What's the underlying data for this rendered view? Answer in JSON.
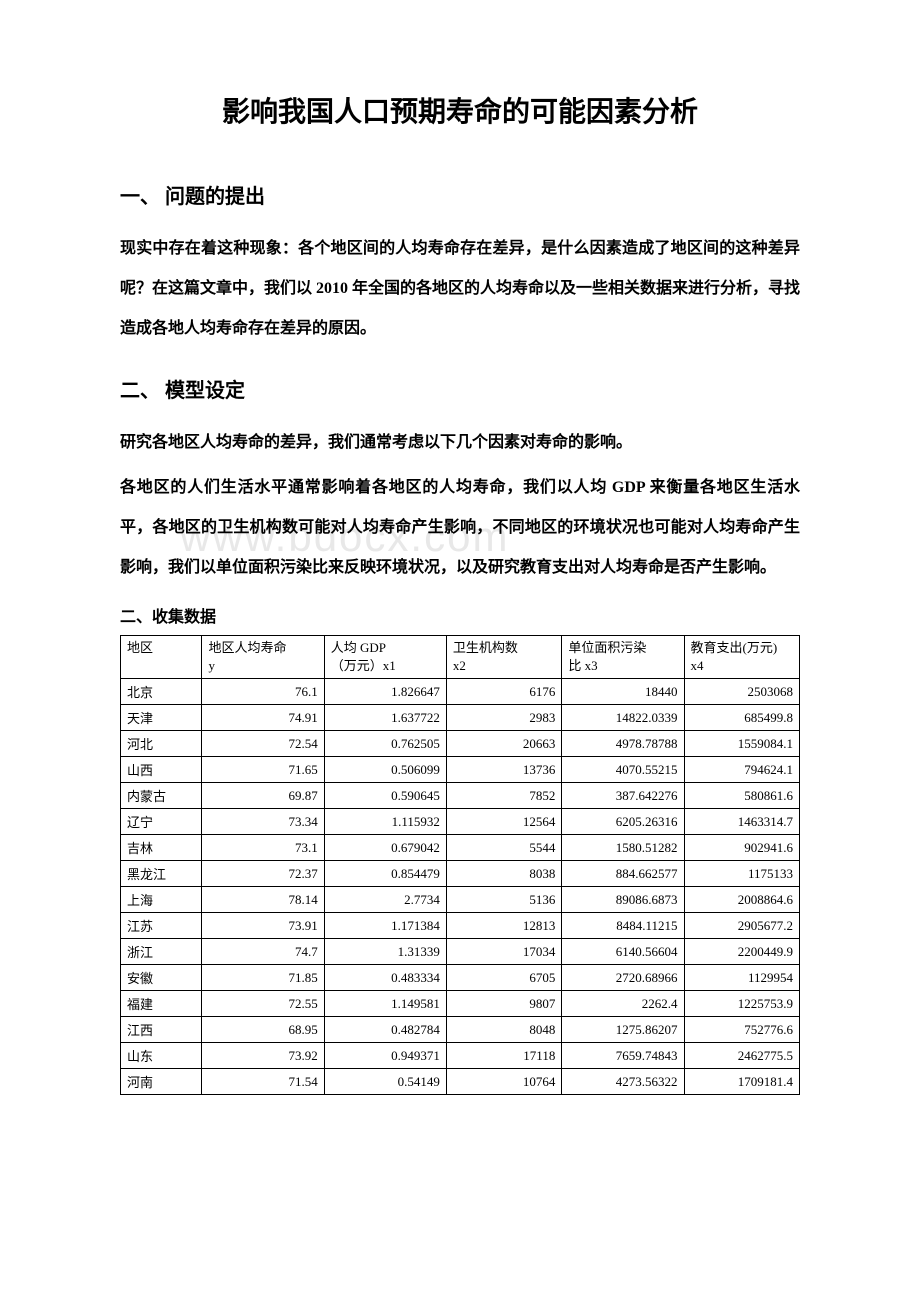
{
  "title": "影响我国人口预期寿命的可能因素分析",
  "sections": {
    "s1": {
      "heading": "一、 问题的提出",
      "paragraphs": [
        "现实中存在着这种现象：各个地区间的人均寿命存在差异，是什么因素造成了地区间的这种差异呢？在这篇文章中，我们以 2010 年全国的各地区的人均寿命以及一些相关数据来进行分析，寻找造成各地人均寿命存在差异的原因。"
      ]
    },
    "s2": {
      "heading": "二、  模型设定",
      "paragraphs": [
        "研究各地区人均寿命的差异，我们通常考虑以下几个因素对寿命的影响。",
        "各地区的人们生活水平通常影响着各地区的人均寿命，我们以人均 GDP 来衡量各地区生活水平，各地区的卫生机构数可能对人均寿命产生影响，不同地区的环境状况也可能对人均寿命产生影响，我们以单位面积污染比来反映环境状况，以及研究教育支出对人均寿命是否产生影响。"
      ]
    },
    "s3": {
      "heading": "二、收集数据"
    }
  },
  "watermark": "www.bdocx.com",
  "table": {
    "columns": [
      {
        "label1": "",
        "label2": "地区",
        "class": "col-region header-cell"
      },
      {
        "label1": "地区人均寿命",
        "label2": "y",
        "class": "header-cell"
      },
      {
        "label1": "人均 GDP",
        "label2": "（万元）x1",
        "class": "header-cell"
      },
      {
        "label1": "卫生机构数",
        "label2": "x2",
        "class": "header-cell"
      },
      {
        "label1": "单位面积污染",
        "label2": "比 x3",
        "class": "header-cell"
      },
      {
        "label1": "教育支出(万元)",
        "label2": "x4",
        "class": "header-cell"
      }
    ],
    "rows": [
      {
        "region": "北京",
        "y": "76.1",
        "x1": "1.826647",
        "x2": "6176",
        "x3": "18440",
        "x4": "2503068"
      },
      {
        "region": "天津",
        "y": "74.91",
        "x1": "1.637722",
        "x2": "2983",
        "x3": "14822.0339",
        "x4": "685499.8"
      },
      {
        "region": "河北",
        "y": "72.54",
        "x1": "0.762505",
        "x2": "20663",
        "x3": "4978.78788",
        "x4": "1559084.1"
      },
      {
        "region": "山西",
        "y": "71.65",
        "x1": "0.506099",
        "x2": "13736",
        "x3": "4070.55215",
        "x4": "794624.1"
      },
      {
        "region": "内蒙古",
        "y": "69.87",
        "x1": "0.590645",
        "x2": "7852",
        "x3": "387.642276",
        "x4": "580861.6"
      },
      {
        "region": "辽宁",
        "y": "73.34",
        "x1": "1.115932",
        "x2": "12564",
        "x3": "6205.26316",
        "x4": "1463314.7"
      },
      {
        "region": "吉林",
        "y": "73.1",
        "x1": "0.679042",
        "x2": "5544",
        "x3": "1580.51282",
        "x4": "902941.6"
      },
      {
        "region": "黑龙江",
        "y": "72.37",
        "x1": "0.854479",
        "x2": "8038",
        "x3": "884.662577",
        "x4": "1175133"
      },
      {
        "region": "上海",
        "y": "78.14",
        "x1": "2.7734",
        "x2": "5136",
        "x3": "89086.6873",
        "x4": "2008864.6"
      },
      {
        "region": "江苏",
        "y": "73.91",
        "x1": "1.171384",
        "x2": "12813",
        "x3": "8484.11215",
        "x4": "2905677.2"
      },
      {
        "region": "浙江",
        "y": "74.7",
        "x1": "1.31339",
        "x2": "17034",
        "x3": "6140.56604",
        "x4": "2200449.9"
      },
      {
        "region": "安徽",
        "y": "71.85",
        "x1": "0.483334",
        "x2": "6705",
        "x3": "2720.68966",
        "x4": "1129954"
      },
      {
        "region": "福建",
        "y": "72.55",
        "x1": "1.149581",
        "x2": "9807",
        "x3": "2262.4",
        "x4": "1225753.9"
      },
      {
        "region": "江西",
        "y": "68.95",
        "x1": "0.482784",
        "x2": "8048",
        "x3": "1275.86207",
        "x4": "752776.6"
      },
      {
        "region": "山东",
        "y": "73.92",
        "x1": "0.949371",
        "x2": "17118",
        "x3": "7659.74843",
        "x4": "2462775.5"
      },
      {
        "region": "河南",
        "y": "71.54",
        "x1": "0.54149",
        "x2": "10764",
        "x3": "4273.56322",
        "x4": "1709181.4"
      }
    ]
  }
}
